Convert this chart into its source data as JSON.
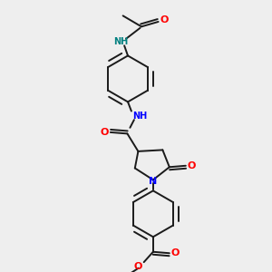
{
  "bg_color": "#eeeeee",
  "bond_color": "#1a1a1a",
  "N_color": "#0000ff",
  "O_color": "#ff0000",
  "NH_top_color": "#008080",
  "NH_bot_color": "#0000ff",
  "line_width": 1.4,
  "figsize": [
    3.0,
    3.0
  ],
  "dpi": 100,
  "xlim": [
    0.15,
    0.85
  ],
  "ylim": [
    0.02,
    1.02
  ]
}
